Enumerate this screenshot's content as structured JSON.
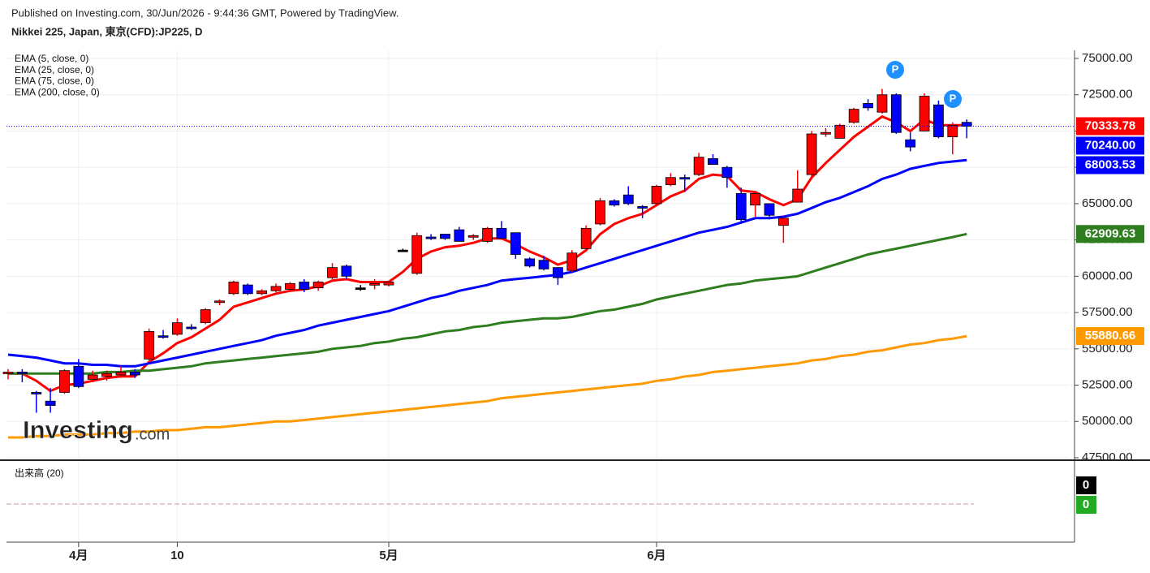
{
  "header": {
    "published": "Published on Investing.com, 30/Jun/2026 - 9:44:36 GMT, Powered by TradingView.",
    "instrument": "Nikkei 225, Japan, 東京(CFD):JP225, D"
  },
  "chart_data": {
    "type": "candlestick",
    "categories": [
      null,
      null,
      null,
      null,
      null,
      "4月",
      null,
      null,
      null,
      null,
      null,
      null,
      "10",
      null,
      null,
      null,
      null,
      null,
      null,
      null,
      null,
      null,
      null,
      null,
      null,
      null,
      null,
      "5月",
      null,
      null,
      null,
      null,
      null,
      null,
      null,
      null,
      null,
      null,
      null,
      null,
      null,
      null,
      null,
      null,
      null,
      null,
      "6月",
      null,
      null,
      null,
      null,
      null,
      null,
      null,
      null,
      null,
      null,
      null,
      null,
      null,
      null,
      null,
      null,
      null,
      null,
      null,
      null,
      null,
      null
    ],
    "ohlc": {
      "open": [
        53300,
        53400,
        52000,
        51400,
        52000,
        53800,
        52900,
        53100,
        53200,
        53400,
        54300,
        55900,
        56000,
        56500,
        56800,
        58200,
        58800,
        59400,
        58800,
        59000,
        59100,
        59600,
        59200,
        59900,
        60700,
        59200,
        59400,
        59400,
        61800,
        60200,
        62700,
        62900,
        63200,
        62700,
        62400,
        63300,
        63000,
        61200,
        61100,
        60600,
        60400,
        61900,
        63600,
        65200,
        65600,
        64800,
        65000,
        66300,
        66800,
        67000,
        68100,
        67500,
        65700,
        64900,
        65000,
        63500,
        65100,
        67000,
        69800,
        69500,
        70600,
        71900,
        71300,
        72500,
        69400,
        70000,
        71800,
        69600,
        70600
      ],
      "high": [
        53600,
        53600,
        52100,
        52300,
        53600,
        54300,
        53500,
        53500,
        53800,
        53600,
        56400,
        56300,
        57100,
        56700,
        57800,
        58400,
        59700,
        59500,
        59100,
        59500,
        59600,
        59800,
        59700,
        60900,
        60800,
        59400,
        59800,
        59700,
        61900,
        63000,
        62900,
        62900,
        63400,
        62900,
        63400,
        63800,
        63000,
        61300,
        61400,
        60600,
        61800,
        63500,
        65400,
        65300,
        66200,
        64900,
        66300,
        67100,
        67000,
        68500,
        68400,
        67600,
        66100,
        65800,
        65000,
        64100,
        67300,
        70000,
        70200,
        70500,
        71600,
        72200,
        72900,
        72600,
        69900,
        72600,
        72100,
        70600,
        70800
      ],
      "low": [
        52900,
        52700,
        50600,
        50600,
        51900,
        52300,
        52700,
        52800,
        53000,
        53000,
        54200,
        55700,
        55900,
        56300,
        56700,
        58000,
        58700,
        58700,
        58700,
        58900,
        59000,
        58900,
        59000,
        59800,
        59800,
        59000,
        59100,
        59300,
        61700,
        60100,
        62500,
        62500,
        62400,
        62500,
        62300,
        62600,
        61200,
        60600,
        60400,
        59400,
        60300,
        61800,
        63500,
        64800,
        64900,
        64000,
        64900,
        66200,
        65800,
        66900,
        67700,
        66100,
        63600,
        64100,
        64100,
        62300,
        65100,
        66900,
        69600,
        69500,
        70500,
        71400,
        71200,
        69800,
        68600,
        70000,
        69500,
        68400,
        69500
      ],
      "close": [
        53400,
        53300,
        51900,
        51100,
        53500,
        52400,
        53200,
        53300,
        53400,
        53200,
        56200,
        55800,
        56800,
        56400,
        57700,
        58300,
        59600,
        58800,
        59000,
        59300,
        59500,
        59100,
        59600,
        60600,
        60000,
        59200,
        59500,
        59600,
        61800,
        62800,
        62600,
        62600,
        62400,
        62800,
        63300,
        62600,
        61500,
        60700,
        60500,
        59900,
        61600,
        63300,
        65200,
        64900,
        65000,
        64700,
        66200,
        66800,
        66700,
        68200,
        67700,
        66800,
        63900,
        65700,
        64200,
        64000,
        66000,
        69800,
        69900,
        70400,
        71500,
        71600,
        72500,
        69900,
        68900,
        72400,
        69600,
        70400,
        70333.78
      ]
    },
    "up_color": "#ff0000",
    "down_color": "#0000ff",
    "series": [
      {
        "name": "EMA (5, close, 0)",
        "color": "#ff0000",
        "values": [
          53300,
          53300,
          52800,
          52100,
          52500,
          52600,
          52800,
          53000,
          53100,
          53100,
          54100,
          54700,
          55400,
          55800,
          56400,
          57000,
          57900,
          58200,
          58500,
          58800,
          59000,
          59100,
          59300,
          59700,
          59800,
          59600,
          59600,
          59600,
          60300,
          61200,
          61700,
          62000,
          62100,
          62300,
          62600,
          62600,
          62200,
          61700,
          61300,
          60800,
          61100,
          61800,
          62900,
          63600,
          64000,
          64300,
          64900,
          65500,
          65900,
          66700,
          67000,
          66900,
          65900,
          65800,
          65300,
          64900,
          65300,
          66800,
          67800,
          68700,
          69600,
          70300,
          71000,
          70600,
          70000,
          70800,
          70400,
          70400,
          70400
        ]
      },
      {
        "name": "EMA (25, close, 0)",
        "color": "#0000ff",
        "values": [
          54600,
          54500,
          54400,
          54200,
          54000,
          54000,
          53900,
          53900,
          53800,
          53800,
          54000,
          54200,
          54400,
          54600,
          54800,
          55000,
          55200,
          55400,
          55600,
          55900,
          56100,
          56300,
          56600,
          56800,
          57000,
          57200,
          57400,
          57600,
          57900,
          58200,
          58500,
          58700,
          59000,
          59200,
          59400,
          59700,
          59800,
          59900,
          60000,
          60100,
          60300,
          60600,
          60900,
          61200,
          61500,
          61800,
          62100,
          62400,
          62700,
          63000,
          63200,
          63400,
          63700,
          64000,
          64000,
          64100,
          64300,
          64700,
          65100,
          65400,
          65800,
          66200,
          66700,
          67000,
          67400,
          67600,
          67800,
          67900,
          68003.53
        ]
      },
      {
        "name": "EMA (75, close, 0)",
        "color": "#2e7d1e",
        "values": [
          53300,
          53300,
          53300,
          53300,
          53300,
          53300,
          53300,
          53400,
          53400,
          53500,
          53500,
          53600,
          53700,
          53800,
          54000,
          54100,
          54200,
          54300,
          54400,
          54500,
          54600,
          54700,
          54800,
          55000,
          55100,
          55200,
          55400,
          55500,
          55700,
          55800,
          56000,
          56200,
          56300,
          56500,
          56600,
          56800,
          56900,
          57000,
          57100,
          57100,
          57200,
          57400,
          57600,
          57700,
          57900,
          58100,
          58400,
          58600,
          58800,
          59000,
          59200,
          59400,
          59500,
          59700,
          59800,
          59900,
          60000,
          60300,
          60600,
          60900,
          61200,
          61500,
          61700,
          61900,
          62100,
          62300,
          62500,
          62700,
          62909.63
        ]
      },
      {
        "name": "EMA (200, close, 0)",
        "color": "#ff9900",
        "values": [
          48900,
          48900,
          49000,
          49000,
          49100,
          49100,
          49100,
          49200,
          49200,
          49300,
          49300,
          49400,
          49400,
          49500,
          49600,
          49600,
          49700,
          49800,
          49900,
          50000,
          50000,
          50100,
          50200,
          50300,
          50400,
          50500,
          50600,
          50700,
          50800,
          50900,
          51000,
          51100,
          51200,
          51300,
          51400,
          51600,
          51700,
          51800,
          51900,
          52000,
          52100,
          52200,
          52300,
          52400,
          52500,
          52600,
          52800,
          52900,
          53100,
          53200,
          53400,
          53500,
          53600,
          53700,
          53800,
          53900,
          54000,
          54200,
          54300,
          54500,
          54600,
          54800,
          54900,
          55100,
          55300,
          55400,
          55600,
          55700,
          55880.66
        ]
      }
    ],
    "ylim": [
      47500,
      75000
    ],
    "yticks": [
      {
        "value": 47500,
        "label": "47500.00"
      },
      {
        "value": 50000,
        "label": "50000.00"
      },
      {
        "value": 52500,
        "label": "52500.00"
      },
      {
        "value": 55000,
        "label": "55000.00"
      },
      {
        "value": 57500,
        "label": "57500.00"
      },
      {
        "value": 60000,
        "label": "60000.00"
      },
      {
        "value": 62500,
        "label": "62500.00"
      },
      {
        "value": 65000,
        "label": "65000.00"
      },
      {
        "value": 67500,
        "label": "67500.00"
      },
      {
        "value": 70000,
        "label": "70000.00"
      },
      {
        "value": 72500,
        "label": "72500.00"
      },
      {
        "value": 75000,
        "label": "75000.00"
      }
    ],
    "price_tags": [
      {
        "value": 70333.78,
        "label": "70333.78",
        "color": "#ff0000"
      },
      {
        "value": 70240,
        "label": "70240.00",
        "color": "#0000ff"
      },
      {
        "value": 68003.53,
        "label": "68003.53",
        "color": "#0000ff"
      },
      {
        "value": 62909.63,
        "label": "62909.63",
        "color": "#2e7d1e"
      },
      {
        "value": 55880.66,
        "label": "55880.66",
        "color": "#ff9900"
      }
    ],
    "grid": true,
    "annotations": [
      "P",
      "P"
    ],
    "watermark": {
      "brand": "Investing",
      "suffix": ".com"
    },
    "volume_panel": {
      "title": "出来高 (20)",
      "labels": [
        0,
        0
      ]
    }
  }
}
